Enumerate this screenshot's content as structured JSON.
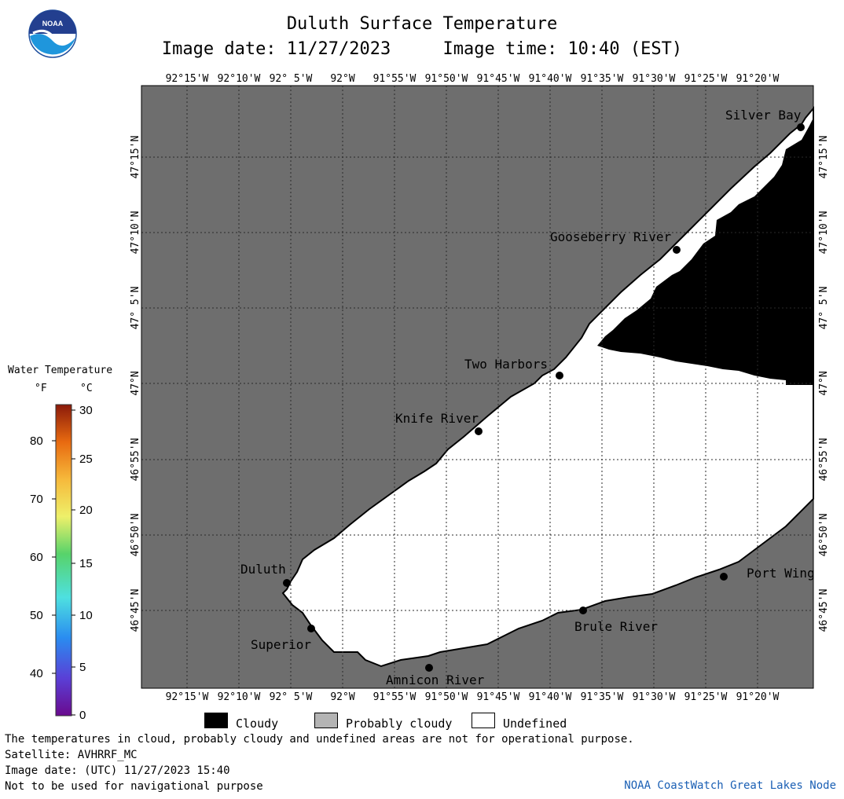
{
  "header": {
    "title": "Duluth Surface Temperature",
    "date_label": "Image date: 11/27/2023",
    "time_label": "Image time: 10:40 (EST)"
  },
  "logo": {
    "text": "NOAA",
    "icon": "noaa-logo-icon"
  },
  "map": {
    "lon_labels": [
      "92°15'W",
      "92°10'W",
      "92° 5'W",
      "92°W",
      "91°55'W",
      "91°50'W",
      "91°45'W",
      "91°40'W",
      "91°35'W",
      "91°30'W",
      "91°25'W",
      "91°20'W"
    ],
    "lat_labels": [
      "47°15'N",
      "47°10'N",
      "47° 5'N",
      "47°N",
      "46°55'N",
      "46°50'N",
      "46°45'N"
    ],
    "places": [
      {
        "name": "Silver Bay"
      },
      {
        "name": "Gooseberry River"
      },
      {
        "name": "Two Harbors"
      },
      {
        "name": "Knife River"
      },
      {
        "name": "Duluth"
      },
      {
        "name": "Superior"
      },
      {
        "name": "Amnicon River"
      },
      {
        "name": "Brule River"
      },
      {
        "name": "Port Wing"
      }
    ],
    "colors": {
      "land": "#6e6e6e",
      "undefined": "#ffffff",
      "cloudy": "#000000",
      "probably_cloudy": "#b4b4b4"
    }
  },
  "legend": {
    "title": "Water Temperature",
    "unit_f": "°F",
    "unit_c": "°C",
    "f_ticks": [
      "80",
      "70",
      "60",
      "50",
      "40"
    ],
    "c_ticks": [
      "30",
      "25",
      "20",
      "15",
      "10",
      "5",
      "0"
    ]
  },
  "key": {
    "cloudy": "Cloudy",
    "probably_cloudy": "Probably cloudy",
    "undefined": "Undefined"
  },
  "footer": {
    "line1": "The temperatures in cloud, probably cloudy and undefined areas are not for operational purpose.",
    "line2": "Satellite: AVHRRF_MC",
    "line3": "Image date: (UTC) 11/27/2023  15:40",
    "line4": "Not to be used for navigational purpose",
    "credit": "NOAA CoastWatch Great Lakes Node"
  }
}
